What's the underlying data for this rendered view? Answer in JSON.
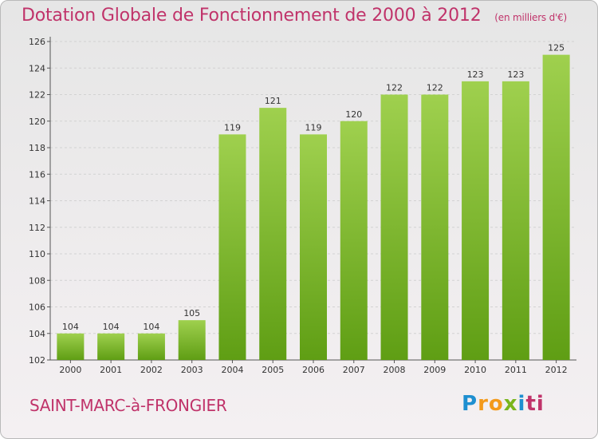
{
  "header": {
    "title": "Dotation Globale de Fonctionnement de 2000 à 2012",
    "unit": "(en milliers d'€)"
  },
  "footer": {
    "commune": "SAINT-MARC-à-FRONGIER",
    "logo_letters": [
      "P",
      "r",
      "o",
      "x",
      "i",
      "t",
      "i"
    ],
    "logo_colors": [
      "#1e8fd0",
      "#f39a1b",
      "#f39a1b",
      "#7ab51d",
      "#1e8fd0",
      "#c0336a",
      "#c0336a"
    ]
  },
  "colors": {
    "bar_top": "#9fd04e",
    "bar_bottom": "#5f9e14",
    "accent": "#c0336a"
  },
  "chart_data": {
    "type": "bar",
    "categories": [
      "2000",
      "2001",
      "2002",
      "2003",
      "2004",
      "2005",
      "2006",
      "2007",
      "2008",
      "2009",
      "2010",
      "2011",
      "2012"
    ],
    "values": [
      104,
      104,
      104,
      105,
      119,
      121,
      119,
      120,
      122,
      122,
      123,
      123,
      125
    ],
    "value_labels": [
      "104",
      "104",
      "104",
      "105",
      "119",
      "121",
      "119",
      "120",
      "122",
      "122",
      "123",
      "123",
      "125"
    ],
    "yticks": [
      102,
      104,
      106,
      108,
      110,
      112,
      114,
      116,
      118,
      120,
      122,
      124,
      126
    ],
    "ytick_labels": [
      "102",
      "104",
      "106",
      "108",
      "110",
      "112",
      "114",
      "116",
      "118",
      "120",
      "122",
      "124",
      "126"
    ],
    "ylim": [
      102,
      126
    ],
    "grid": true,
    "legend": "none"
  }
}
